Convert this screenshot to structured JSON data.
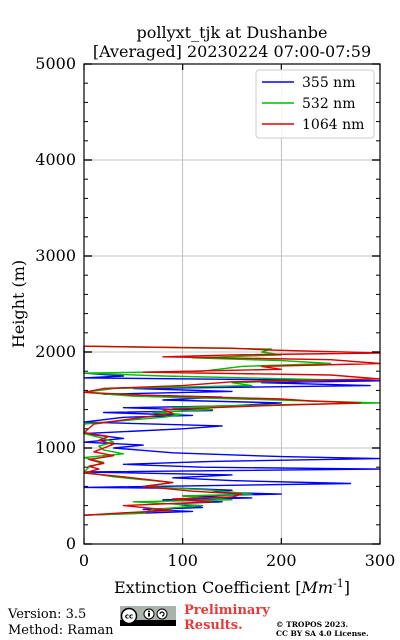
{
  "chart_data": {
    "type": "line",
    "title": "pollyxt_tjk at Dushanbe",
    "subtitle": "[Averaged] 20230224 07:00-07:59",
    "xlabel": "Extinction Coefficient",
    "xlabel_unit": "Mm",
    "xlabel_exp": "-1",
    "ylabel": "Height (m)",
    "xlim": [
      0,
      300
    ],
    "ylim": [
      0,
      5000
    ],
    "xticks": [
      0,
      100,
      200,
      300
    ],
    "yticks": [
      0,
      1000,
      2000,
      3000,
      4000,
      5000
    ],
    "grid": true,
    "legend_position": "top-right",
    "series": [
      {
        "name": "355 nm",
        "color": "#0000ff",
        "points": [
          [
            0,
            300
          ],
          [
            110,
            340
          ],
          [
            60,
            360
          ],
          [
            120,
            380
          ],
          [
            90,
            420
          ],
          [
            140,
            440
          ],
          [
            80,
            460
          ],
          [
            170,
            480
          ],
          [
            100,
            500
          ],
          [
            200,
            520
          ],
          [
            130,
            540
          ],
          [
            150,
            560
          ],
          [
            100,
            580
          ],
          [
            0,
            590
          ],
          [
            270,
            630
          ],
          [
            150,
            660
          ],
          [
            90,
            690
          ],
          [
            150,
            720
          ],
          [
            0,
            750
          ],
          [
            300,
            780
          ],
          [
            120,
            800
          ],
          [
            40,
            830
          ],
          [
            130,
            860
          ],
          [
            300,
            890
          ],
          [
            200,
            910
          ],
          [
            90,
            950
          ],
          [
            30,
            1000
          ],
          [
            60,
            1030
          ],
          [
            0,
            1060
          ],
          [
            40,
            1100
          ],
          [
            0,
            1150
          ],
          [
            100,
            1200
          ],
          [
            140,
            1230
          ],
          [
            0,
            1270
          ],
          [
            40,
            1320
          ],
          [
            110,
            1340
          ],
          [
            20,
            1370
          ],
          [
            130,
            1390
          ],
          [
            40,
            1420
          ],
          [
            150,
            1440
          ],
          [
            200,
            1470
          ],
          [
            80,
            1500
          ],
          [
            140,
            1530
          ],
          [
            20,
            1560
          ],
          [
            150,
            1590
          ],
          [
            50,
            1620
          ],
          [
            290,
            1650
          ],
          [
            180,
            1680
          ],
          [
            300,
            1700
          ],
          [
            0,
            1730
          ],
          [
            40,
            1750
          ],
          [
            0,
            1780
          ],
          [
            0,
            2060
          ]
        ]
      },
      {
        "name": "532 nm",
        "color": "#00bb00",
        "points": [
          [
            0,
            300
          ],
          [
            60,
            320
          ],
          [
            70,
            360
          ],
          [
            120,
            400
          ],
          [
            50,
            440
          ],
          [
            150,
            460
          ],
          [
            100,
            500
          ],
          [
            170,
            520
          ],
          [
            130,
            560
          ],
          [
            60,
            600
          ],
          [
            90,
            640
          ],
          [
            30,
            700
          ],
          [
            0,
            750
          ],
          [
            5,
            800
          ],
          [
            20,
            850
          ],
          [
            0,
            900
          ],
          [
            40,
            940
          ],
          [
            20,
            980
          ],
          [
            15,
            1020
          ],
          [
            30,
            1060
          ],
          [
            20,
            1100
          ],
          [
            0,
            1150
          ],
          [
            0,
            1250
          ],
          [
            80,
            1320
          ],
          [
            100,
            1350
          ],
          [
            70,
            1370
          ],
          [
            130,
            1400
          ],
          [
            90,
            1420
          ],
          [
            140,
            1440
          ],
          [
            300,
            1470
          ],
          [
            230,
            1490
          ],
          [
            160,
            1510
          ],
          [
            50,
            1540
          ],
          [
            0,
            1580
          ],
          [
            30,
            1620
          ],
          [
            170,
            1650
          ],
          [
            150,
            1680
          ],
          [
            250,
            1710
          ],
          [
            80,
            1750
          ],
          [
            0,
            1780
          ],
          [
            120,
            1800
          ],
          [
            160,
            1850
          ],
          [
            250,
            1880
          ],
          [
            200,
            1910
          ],
          [
            110,
            1940
          ],
          [
            200,
            1970
          ],
          [
            180,
            2000
          ],
          [
            190,
            2030
          ],
          [
            0,
            2060
          ]
        ]
      },
      {
        "name": "1064 nm",
        "color": "#dd0000",
        "points": [
          [
            0,
            300
          ],
          [
            50,
            330
          ],
          [
            90,
            350
          ],
          [
            40,
            400
          ],
          [
            130,
            440
          ],
          [
            90,
            470
          ],
          [
            150,
            490
          ],
          [
            160,
            520
          ],
          [
            110,
            550
          ],
          [
            80,
            580
          ],
          [
            60,
            600
          ],
          [
            90,
            640
          ],
          [
            40,
            700
          ],
          [
            0,
            740
          ],
          [
            15,
            780
          ],
          [
            5,
            810
          ],
          [
            20,
            840
          ],
          [
            5,
            880
          ],
          [
            30,
            920
          ],
          [
            10,
            960
          ],
          [
            20,
            1000
          ],
          [
            30,
            1040
          ],
          [
            15,
            1080
          ],
          [
            25,
            1120
          ],
          [
            0,
            1160
          ],
          [
            10,
            1250
          ],
          [
            60,
            1320
          ],
          [
            90,
            1360
          ],
          [
            80,
            1400
          ],
          [
            180,
            1440
          ],
          [
            280,
            1470
          ],
          [
            230,
            1490
          ],
          [
            200,
            1510
          ],
          [
            60,
            1550
          ],
          [
            0,
            1580
          ],
          [
            20,
            1620
          ],
          [
            100,
            1650
          ],
          [
            150,
            1690
          ],
          [
            300,
            1720
          ],
          [
            250,
            1760
          ],
          [
            60,
            1790
          ],
          [
            200,
            1820
          ],
          [
            180,
            1850
          ],
          [
            300,
            1880
          ],
          [
            250,
            1920
          ],
          [
            80,
            1950
          ],
          [
            150,
            1970
          ],
          [
            300,
            1990
          ],
          [
            190,
            2020
          ],
          [
            150,
            2040
          ],
          [
            0,
            2060
          ]
        ]
      }
    ]
  },
  "footer": {
    "version": "Version: 3.5",
    "method": "Method: Raman",
    "prelim_line1": "Preliminary",
    "prelim_line2": "Results.",
    "copyright_line1": "© TROPOS 2023.",
    "copyright_line2": "CC BY SA 4.0 License.",
    "cc_text": "cc"
  }
}
